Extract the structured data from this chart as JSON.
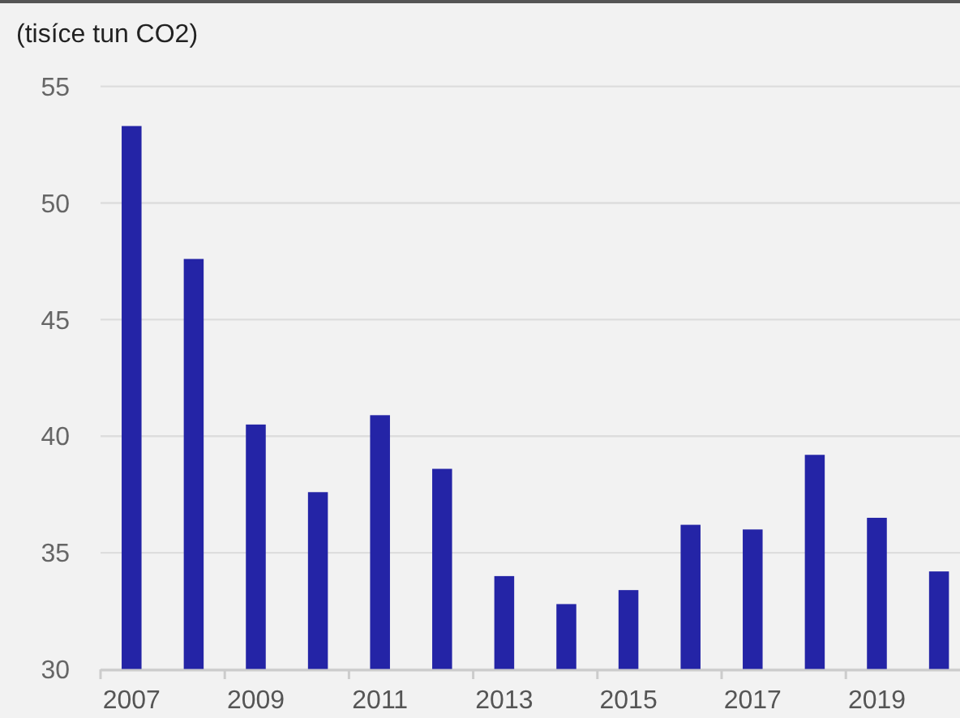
{
  "chart_data": {
    "type": "bar",
    "ylabel": "(tisíce tun CO2)",
    "categories": [
      "2007",
      null,
      "2009",
      null,
      "2011",
      null,
      "2013",
      null,
      "2015",
      null,
      "2017",
      null,
      "2019",
      null
    ],
    "values": [
      53.3,
      47.6,
      40.5,
      37.6,
      40.9,
      38.6,
      34.0,
      32.8,
      33.4,
      36.2,
      36.0,
      39.2,
      36.5,
      34.2
    ],
    "color": "#2424a6",
    "ylim": [
      30,
      55
    ],
    "yticks": [
      30,
      35,
      40,
      45,
      50,
      55
    ],
    "grid": "y"
  }
}
